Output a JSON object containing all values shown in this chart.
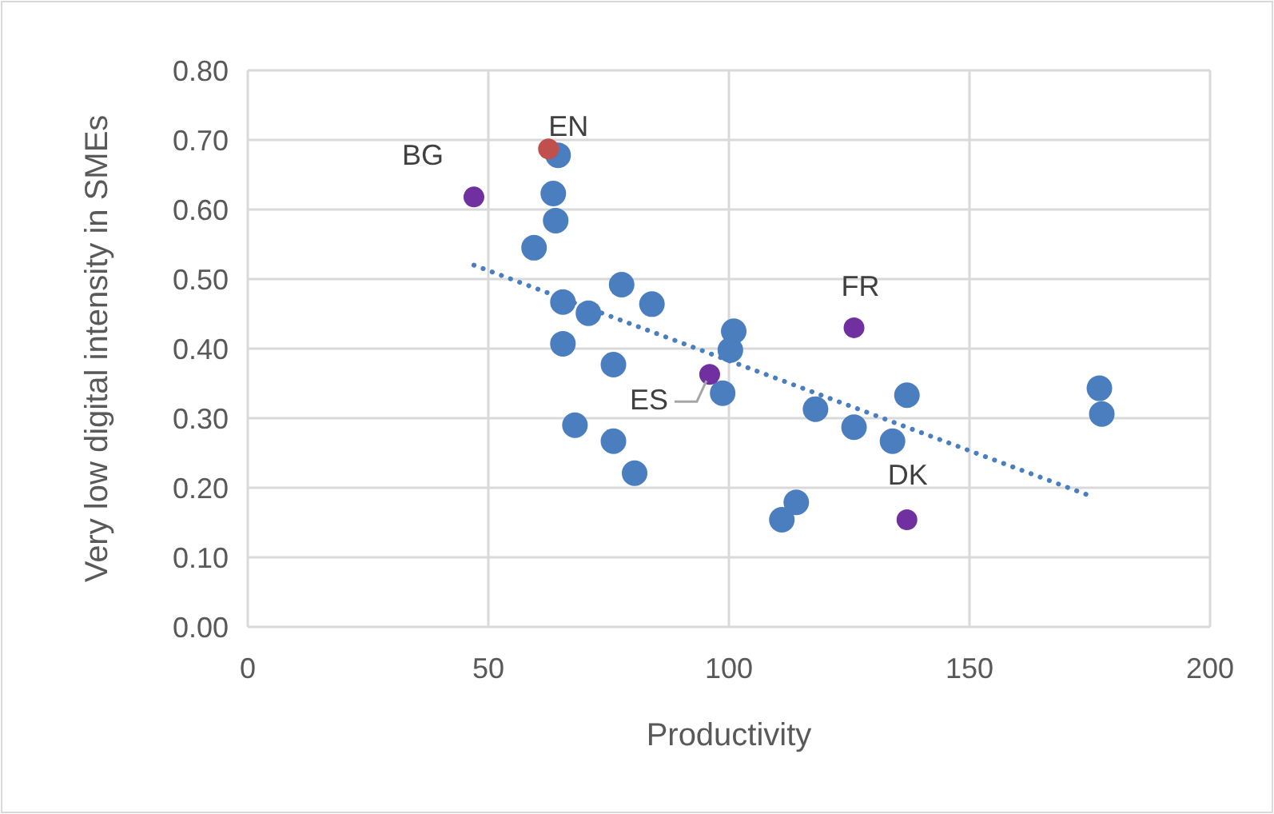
{
  "chart_data": {
    "type": "scatter",
    "xlabel": "Productivity",
    "ylabel": "Very low digital intensity in SMEs",
    "xlim": [
      0,
      200
    ],
    "xticks": [
      0,
      50,
      100,
      150,
      200
    ],
    "ylim": [
      0,
      0.8
    ],
    "yticks": [
      {
        "value": 0,
        "label": "0.00"
      },
      {
        "value": 0.1,
        "label": "0.10"
      },
      {
        "value": 0.2,
        "label": "0.20"
      },
      {
        "value": 0.3,
        "label": "0.30"
      },
      {
        "value": 0.4,
        "label": "0.40"
      },
      {
        "value": 0.5,
        "label": "0.50"
      },
      {
        "value": 0.6,
        "label": "0.60"
      },
      {
        "value": 0.7,
        "label": "0.70"
      },
      {
        "value": 0.8,
        "label": "0.80"
      }
    ],
    "grid": true,
    "marker": "circle",
    "series": [
      {
        "color": "#4a7ebf",
        "x": [
          64.5,
          63.5,
          64,
          59.5,
          65.5,
          70.8,
          65.5,
          77.7,
          84,
          101,
          100.3,
          98.7,
          76,
          68,
          76,
          80.4,
          118,
          126,
          137,
          134,
          111,
          114,
          177,
          177.5
        ],
        "values": [
          0.678,
          0.623,
          0.584,
          0.545,
          0.467,
          0.451,
          0.407,
          0.492,
          0.464,
          0.425,
          0.398,
          0.336,
          0.377,
          0.29,
          0.267,
          0.221,
          0.313,
          0.287,
          0.333,
          0.267,
          0.154,
          0.179,
          0.343,
          0.306
        ]
      },
      {
        "color": "#c0504d",
        "x": [
          62.5
        ],
        "values": [
          0.687
        ]
      },
      {
        "color": "#7030a0",
        "x": [
          47,
          96,
          126,
          137
        ],
        "values": [
          0.618,
          0.363,
          0.43,
          0.154
        ]
      },
      {
        "type": "line",
        "line_style": "dotted",
        "marker": "none",
        "color": "#4a7ebf",
        "x": [
          47,
          176
        ],
        "values": [
          0.52,
          0.186
        ]
      }
    ],
    "annotations": [
      {
        "text": "EN",
        "x": 62.5,
        "y": 0.687
      },
      {
        "text": "BG",
        "x": 47,
        "y": 0.618
      },
      {
        "text": "ES",
        "x": 96,
        "y": 0.363
      },
      {
        "text": "FR",
        "x": 126,
        "y": 0.43
      },
      {
        "text": "DK",
        "x": 137,
        "y": 0.154
      }
    ]
  }
}
